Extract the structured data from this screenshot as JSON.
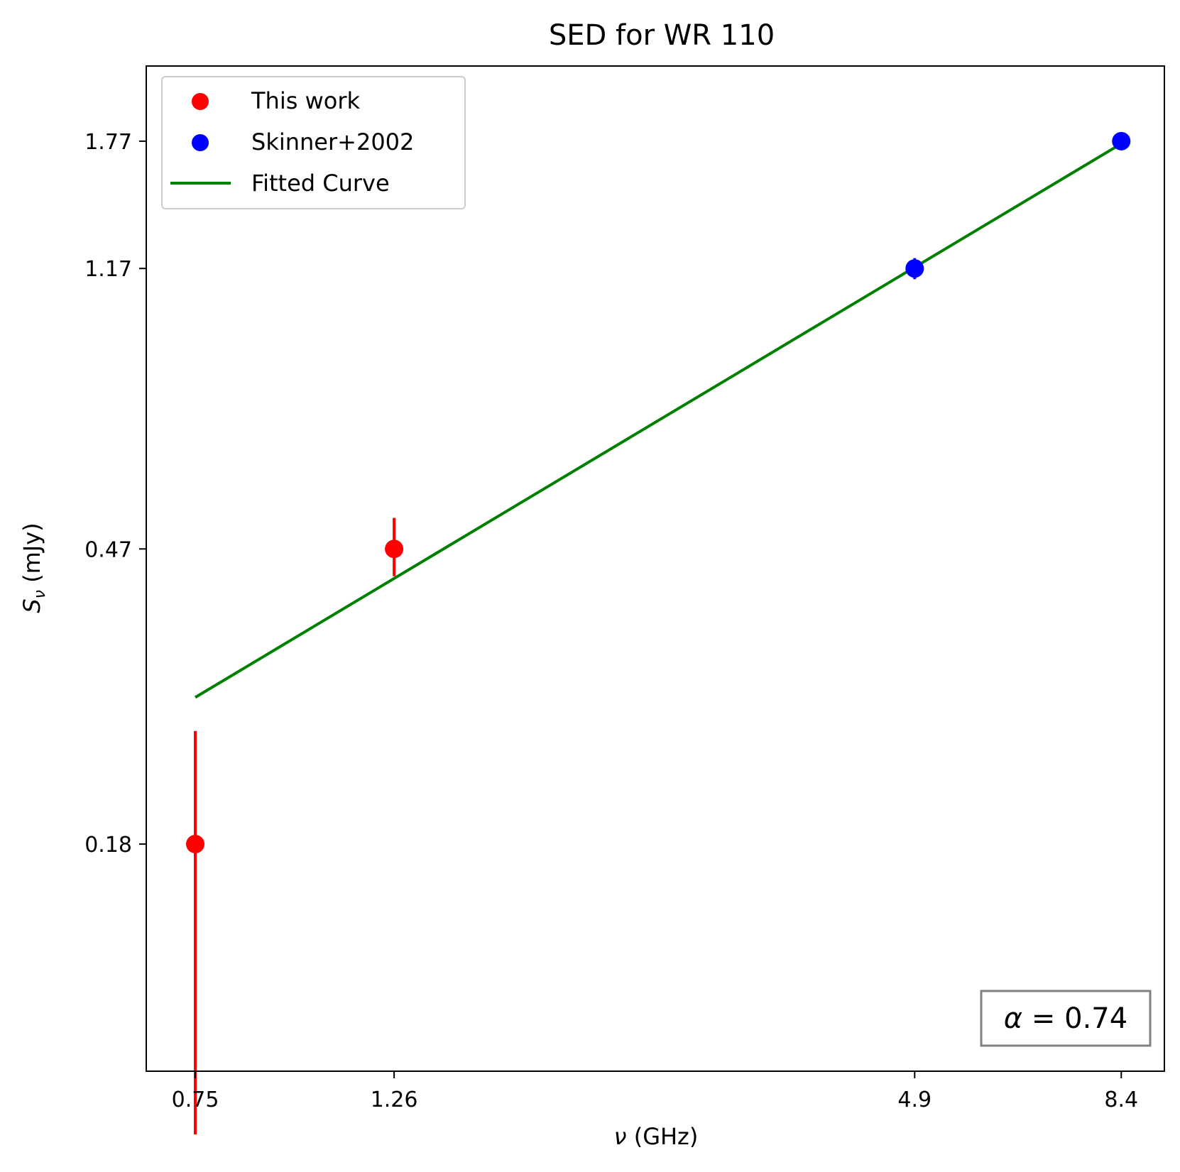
{
  "chart_data": {
    "type": "scatter",
    "title": "SED for WR 110",
    "xlabel_symbol": "ν",
    "xlabel_rest": " (GHz)",
    "ylabel_symbol": "S",
    "ylabel_subscript": "ν",
    "ylabel_rest": " (mJy)",
    "x_scale": "log",
    "y_scale": "log",
    "xlim": [
      0.66,
      9.4
    ],
    "ylim": [
      0.086,
      2.26
    ],
    "x_ticks": [
      0.75,
      1.26,
      4.9,
      8.4
    ],
    "x_tick_labels": [
      "0.75",
      "1.26",
      "4.9",
      "8.4"
    ],
    "y_ticks": [
      0.18,
      0.47,
      1.17,
      1.77
    ],
    "y_tick_labels": [
      "0.18",
      "0.47",
      "1.17",
      "1.77"
    ],
    "grid": false,
    "legend_position": "top-left",
    "series": [
      {
        "name": "This work",
        "kind": "points",
        "color": "#ff0000",
        "points": [
          {
            "x": 0.75,
            "y": 0.18,
            "yerr_low": 0.07,
            "yerr_high": 0.26
          },
          {
            "x": 1.26,
            "y": 0.47,
            "yerr_low": 0.43,
            "yerr_high": 0.52
          }
        ]
      },
      {
        "name": "Skinner+2002",
        "kind": "points",
        "color": "#0000ff",
        "points": [
          {
            "x": 4.9,
            "y": 1.17,
            "yerr_low": 1.13,
            "yerr_high": 1.21
          },
          {
            "x": 8.4,
            "y": 1.77
          }
        ]
      },
      {
        "name": "Fitted Curve",
        "kind": "line",
        "color": "#008000",
        "x": [
          0.75,
          8.3
        ],
        "y": [
          0.29,
          1.74
        ]
      }
    ],
    "annotation": {
      "symbol": "α",
      "text": " = 0.74",
      "position": "bottom-right"
    }
  }
}
